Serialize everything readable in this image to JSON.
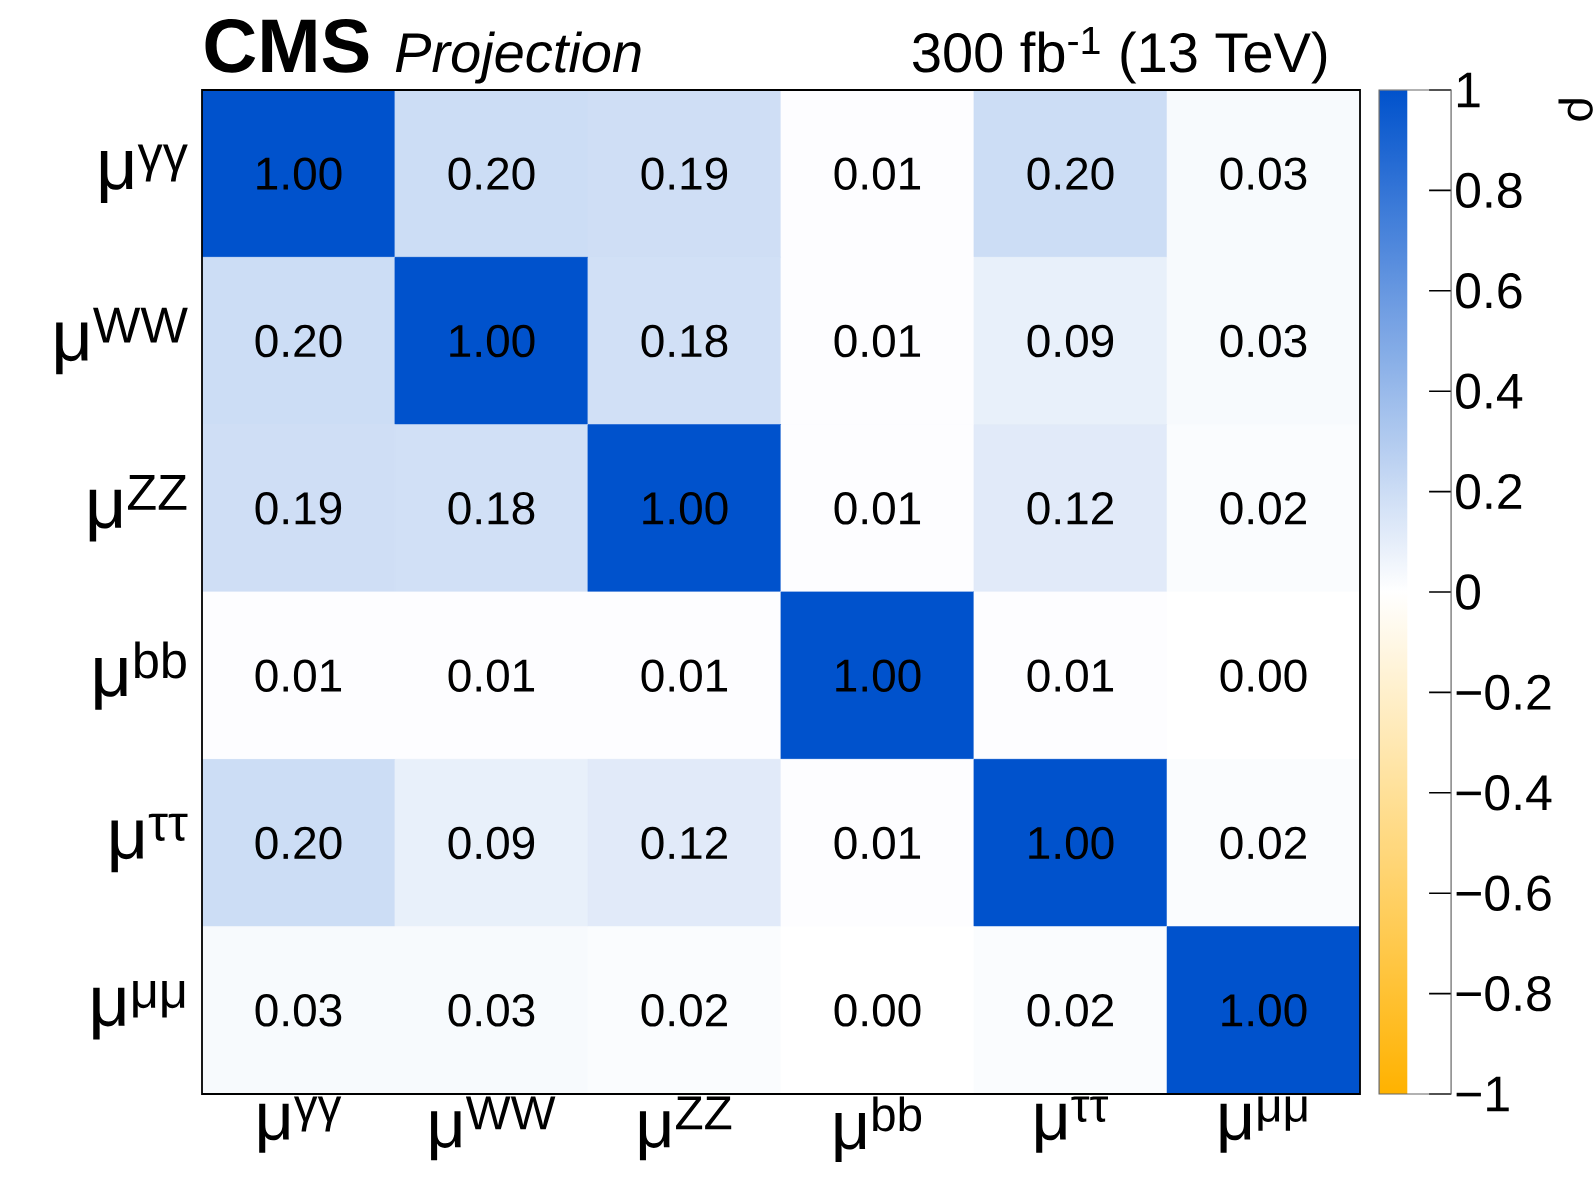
{
  "chart_data": {
    "type": "heatmap",
    "title": "CMS",
    "subtitle": "Projection",
    "annotations": [
      "300 fb$^{-1}$ (13 TeV)"
    ],
    "categories": [
      "μ$^{γγ}$",
      "μ$^{WW}$",
      "μ$^{ZZ}$",
      "μ$^{bb}$",
      "μ$^{ττ}$",
      "μ$^{μμ}$"
    ],
    "y_categories": [
      "μ$^{γγ}$",
      "μ$^{WW}$",
      "μ$^{ZZ}$",
      "μ$^{bb}$",
      "μ$^{ττ}$",
      "μ$^{μμ}$"
    ],
    "cells": [
      [
        1.0,
        0.2,
        0.19,
        0.01,
        0.2,
        0.03
      ],
      [
        0.2,
        1.0,
        0.18,
        0.01,
        0.09,
        0.03
      ],
      [
        0.19,
        0.18,
        1.0,
        0.01,
        0.12,
        0.02
      ],
      [
        0.01,
        0.01,
        0.01,
        1.0,
        0.01,
        0.0
      ],
      [
        0.2,
        0.09,
        0.12,
        0.01,
        1.0,
        0.02
      ],
      [
        0.03,
        0.03,
        0.02,
        0.0,
        0.02,
        1.0
      ]
    ],
    "cell_labels": [
      [
        "1.00",
        "0.20",
        "0.19",
        "0.01",
        "0.20",
        "0.03"
      ],
      [
        "0.20",
        "1.00",
        "0.18",
        "0.01",
        "0.09",
        "0.03"
      ],
      [
        "0.19",
        "0.18",
        "1.00",
        "0.01",
        "0.12",
        "0.02"
      ],
      [
        "0.01",
        "0.01",
        "0.01",
        "1.00",
        "0.01",
        "0.00"
      ],
      [
        "0.20",
        "0.09",
        "0.12",
        "0.01",
        "1.00",
        "0.02"
      ],
      [
        "0.03",
        "0.03",
        "0.02",
        "0.00",
        "0.02",
        "1.00"
      ]
    ],
    "clim": [
      -1,
      1
    ],
    "cticks": [
      {
        "value": -1,
        "label": "−1"
      },
      {
        "value": -0.8,
        "label": "−0.8"
      },
      {
        "value": -0.6,
        "label": "−0.6"
      },
      {
        "value": -0.4,
        "label": "−0.4"
      },
      {
        "value": -0.2,
        "label": "−0.2"
      },
      0,
      0.2,
      0.4,
      0.6,
      0.8,
      1
    ],
    "clabel": "ρ"
  }
}
